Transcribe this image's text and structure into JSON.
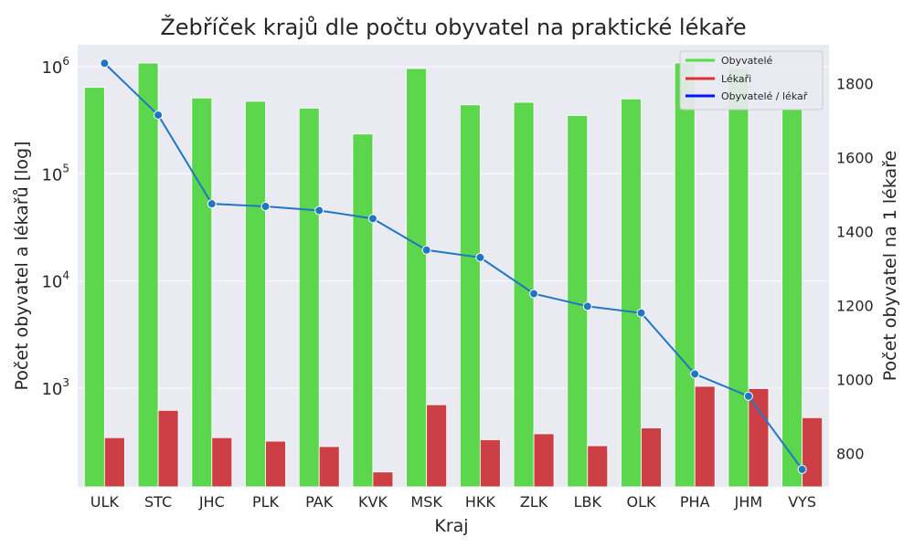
{
  "chart_data": {
    "type": "bar",
    "title": "Žebříček krajů dle počtu obyvatel na praktické lékaře",
    "xlabel": "Kraj",
    "ylabel": "Počet obyvatel a lékařů [log]",
    "y2label": "Počet obyvatel na 1 lékaře",
    "yscale": "log",
    "ylim": [
      120,
      1600000
    ],
    "y2lim": [
      710,
      1905
    ],
    "y_ticks": [
      1000,
      10000,
      100000,
      1000000
    ],
    "y_tick_labels": [
      {
        "base": "10",
        "exp": "3"
      },
      {
        "base": "10",
        "exp": "4"
      },
      {
        "base": "10",
        "exp": "5"
      },
      {
        "base": "10",
        "exp": "6"
      }
    ],
    "y2_ticks": [
      800,
      1000,
      1200,
      1400,
      1600,
      1800
    ],
    "y2_tick_labels": [
      "800",
      "1000",
      "1200",
      "1400",
      "1600",
      "1800"
    ],
    "grid": true,
    "legend_position": "top-right",
    "categories": [
      "ULK",
      "STC",
      "JHC",
      "PLK",
      "PAK",
      "KVK",
      "MSK",
      "HKK",
      "ZLK",
      "LBK",
      "OLK",
      "PHA",
      "JHM",
      "VYS"
    ],
    "series": [
      {
        "name": "Obyvatelé",
        "kind": "bar",
        "axis": "left",
        "color": "#5cd64c",
        "legend_color": "#52e043",
        "values": [
          640000,
          1080000,
          510000,
          475000,
          410000,
          235000,
          960000,
          440000,
          465000,
          350000,
          500000,
          1080000,
          970000,
          400000
        ]
      },
      {
        "name": "Lékaři",
        "kind": "bar",
        "axis": "left",
        "color": "#cc4045",
        "legend_color": "#e0302e",
        "values": [
          345,
          620,
          345,
          320,
          285,
          165,
          700,
          330,
          375,
          290,
          425,
          1040,
          990,
          530
        ]
      },
      {
        "name": "Obyvatelé / lékař",
        "kind": "line",
        "axis": "right",
        "color": "#1f77c4",
        "legend_color": "#0015ff",
        "values": [
          1855,
          1715,
          1475,
          1468,
          1457,
          1435,
          1350,
          1330,
          1232,
          1198,
          1180,
          1015,
          955,
          757
        ]
      }
    ]
  }
}
